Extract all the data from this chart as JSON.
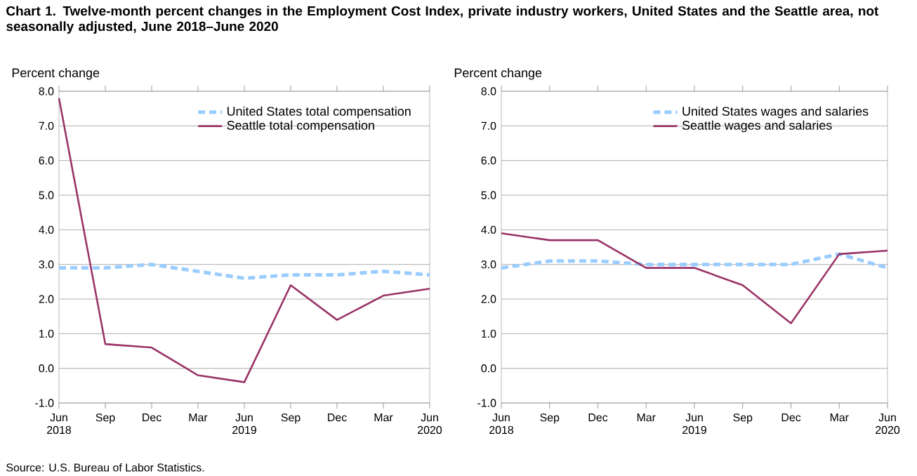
{
  "chart_data": [
    {
      "type": "line",
      "title": "Chart 1. Twelve-month percent changes in the Employment Cost Index, private industry workers, United States and the Seattle area, not seasonally adjusted, June 2018–June 2020",
      "ylabel": "Percent change",
      "categories": [
        "Jun 2018",
        "Sep",
        "Dec",
        "Mar",
        "Jun 2019",
        "Sep",
        "Dec",
        "Mar",
        "Jun 2020"
      ],
      "series": [
        {
          "name": "United States total compensation",
          "color": "#99ccff",
          "line_style": "dashed",
          "values": [
            2.9,
            2.9,
            3.0,
            2.8,
            2.6,
            2.7,
            2.7,
            2.8,
            2.7
          ]
        },
        {
          "name": "Seattle total compensation",
          "color": "#993366",
          "line_style": "solid",
          "values": [
            7.8,
            0.7,
            0.6,
            -0.2,
            -0.4,
            2.4,
            1.4,
            2.1,
            2.3
          ]
        }
      ],
      "ylim": [
        -1,
        8
      ],
      "yticks": [
        {
          "value": -1,
          "label": "-1.0"
        },
        {
          "value": 0,
          "label": "0.0"
        },
        {
          "value": 1,
          "label": "1.0"
        },
        {
          "value": 2,
          "label": "2.0"
        },
        {
          "value": 3,
          "label": "3.0"
        },
        {
          "value": 4,
          "label": "4.0"
        },
        {
          "value": 5,
          "label": "5.0"
        },
        {
          "value": 6,
          "label": "6.0"
        },
        {
          "value": 7,
          "label": "7.0"
        },
        {
          "value": 8,
          "label": "8.0"
        }
      ],
      "grid": "y",
      "legend": "top right",
      "marker": "none",
      "annotations": [
        "Source: U.S. Bureau of Labor Statistics."
      ]
    },
    {
      "type": "line",
      "ylabel": "Percent change",
      "categories": [
        "Jun 2018",
        "Sep",
        "Dec",
        "Mar",
        "Jun 2019",
        "Sep",
        "Dec",
        "Mar",
        "Jun 2020"
      ],
      "series": [
        {
          "name": "United States wages and salaries",
          "color": "#99ccff",
          "line_style": "dashed",
          "values": [
            2.9,
            3.1,
            3.1,
            3.0,
            3.0,
            3.0,
            3.0,
            3.3,
            2.9
          ]
        },
        {
          "name": "Seattle wages and salaries",
          "color": "#993366",
          "line_style": "solid",
          "values": [
            3.9,
            3.7,
            3.7,
            2.9,
            2.9,
            2.4,
            1.3,
            3.3,
            3.4
          ]
        }
      ],
      "ylim": [
        -1,
        8
      ],
      "yticks": [
        {
          "value": -1,
          "label": "-1.0"
        },
        {
          "value": 0,
          "label": "0.0"
        },
        {
          "value": 1,
          "label": "1.0"
        },
        {
          "value": 2,
          "label": "2.0"
        },
        {
          "value": 3,
          "label": "3.0"
        },
        {
          "value": 4,
          "label": "4.0"
        },
        {
          "value": 5,
          "label": "5.0"
        },
        {
          "value": 6,
          "label": "6.0"
        },
        {
          "value": 7,
          "label": "7.0"
        },
        {
          "value": 8,
          "label": "8.0"
        }
      ],
      "grid": "y",
      "legend": "top right",
      "marker": "none"
    }
  ]
}
